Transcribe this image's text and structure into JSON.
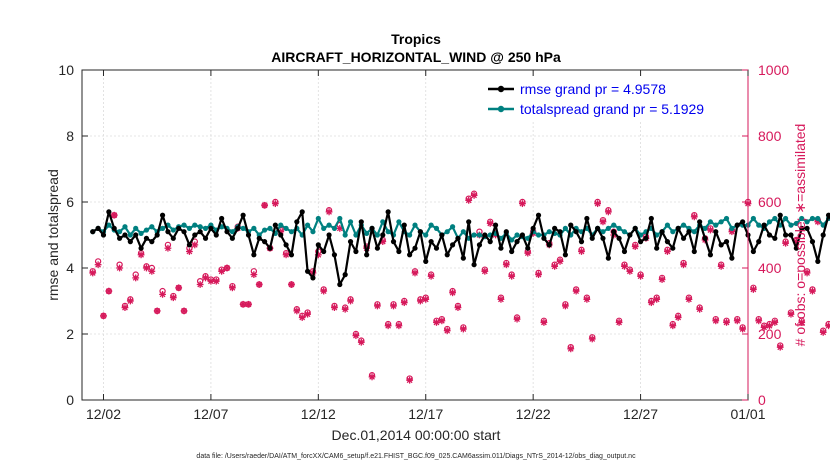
{
  "chart_data": {
    "type": "line",
    "title": "Tropics",
    "subtitle": "AIRCRAFT_HORIZONTAL_WIND @ 250 hPa",
    "xlabel": "Dec.01,2014 00:00:00 start",
    "ylabel_left": "rmse and totalspread",
    "ylabel_right": "# of obs: o=possible; ∗=assimilated",
    "footnote": "data file: /Users/raeder/DAI/ATM_forcXX/CAM6_setup/f.e21.FHIST_BGC.f09_025.CAM6assim.011/Diags_NTrS_2014-12/obs_diag_output.nc",
    "xlim": [
      0.5,
      31.5
    ],
    "ylim_left": [
      0,
      10
    ],
    "ylim_right": [
      0,
      1000
    ],
    "x_ticks": [
      1.5,
      6.5,
      11.5,
      16.5,
      21.5,
      26.5,
      31.5
    ],
    "x_tick_labels": [
      "12/02",
      "12/07",
      "12/12",
      "12/17",
      "12/22",
      "12/27",
      "01/01"
    ],
    "y_left_ticks": [
      "0",
      "2",
      "4",
      "6",
      "8",
      "10"
    ],
    "y_right_ticks": [
      "0",
      "200",
      "400",
      "600",
      "800",
      "1000"
    ],
    "x_step": 0.25,
    "colors": {
      "rmse": "#000000",
      "spread": "#008080",
      "obs": "#d6195b",
      "left_axis": "#262626",
      "right_axis": "#d6195b",
      "legend_text": "#0000ee"
    },
    "series": [
      {
        "name": "rmse grand pr = 4.9578",
        "values": [
          5.1,
          5.2,
          5.0,
          5.7,
          5.2,
          4.9,
          5.0,
          4.8,
          5.0,
          4.6,
          4.9,
          4.8,
          5.0,
          5.6,
          5.1,
          4.9,
          5.2,
          5.1,
          4.7,
          5.0,
          5.1,
          4.9,
          5.2,
          5.0,
          5.5,
          5.1,
          4.9,
          5.2,
          5.6,
          5.0,
          4.4,
          4.9,
          4.8,
          4.6,
          5.3,
          5.0,
          4.7,
          4.4,
          5.4,
          5.7,
          3.9,
          3.7,
          4.7,
          4.5,
          5.0,
          4.4,
          3.5,
          3.8,
          4.8,
          4.5,
          5.4,
          4.4,
          5.2,
          4.6,
          5.0,
          5.7,
          4.8,
          4.5,
          5.3,
          4.4,
          4.6,
          5.1,
          4.2,
          4.8,
          4.6,
          5.0,
          4.4,
          4.7,
          4.9,
          4.3,
          5.4,
          4.1,
          4.7,
          5.0,
          4.8,
          5.3,
          4.6,
          5.1,
          4.5,
          4.8,
          5.0,
          4.6,
          5.2,
          5.6,
          4.9,
          4.7,
          5.2,
          5.1,
          4.4,
          5.3,
          5.1,
          4.8,
          5.5,
          4.9,
          5.2,
          4.9,
          4.3,
          5.1,
          4.9,
          4.5,
          5.0,
          5.2,
          4.8,
          4.9,
          5.5,
          4.6,
          5.1,
          4.8,
          4.6,
          5.2,
          4.9,
          5.1,
          4.5,
          5.4,
          4.9,
          4.4,
          5.1,
          4.7,
          4.8,
          4.3,
          5.3,
          5.4,
          5.0,
          4.5,
          4.8,
          5.3,
          5.0,
          4.9,
          5.6,
          5.0,
          5.0,
          4.6,
          5.2,
          5.2,
          4.8,
          4.2,
          5.0,
          5.6,
          5.3,
          5.0,
          5.2,
          6.0,
          5.0,
          4.1,
          5.6,
          5.2,
          6.3,
          5.2,
          5.0,
          4.6,
          5.4,
          5.0,
          4.5,
          5.1,
          4.9,
          4.6,
          4.9,
          5.2,
          4.7,
          5.5,
          4.8,
          4.6,
          5.1
        ]
      },
      {
        "name": "totalspread grand pr = 5.1929",
        "values": [
          5.1,
          5.2,
          5.1,
          5.3,
          5.15,
          5.1,
          5.25,
          5.0,
          5.2,
          5.05,
          5.15,
          5.25,
          5.1,
          5.2,
          5.3,
          5.15,
          5.25,
          5.3,
          5.2,
          5.3,
          5.25,
          5.2,
          5.3,
          5.15,
          5.25,
          5.2,
          5.1,
          5.25,
          5.2,
          5.1,
          5.2,
          5.0,
          5.15,
          5.2,
          5.05,
          5.3,
          5.2,
          5.1,
          5.2,
          5.0,
          5.3,
          5.1,
          5.5,
          5.2,
          5.3,
          5.2,
          5.5,
          5.0,
          5.4,
          5.0,
          5.3,
          5.05,
          5.2,
          5.0,
          5.4,
          5.1,
          5.0,
          5.4,
          5.1,
          5.0,
          5.3,
          5.1,
          5.0,
          5.3,
          5.2,
          5.0,
          5.1,
          5.25,
          4.9,
          5.1,
          4.9,
          5.0,
          5.0,
          4.95,
          5.0,
          5.05,
          4.9,
          5.05,
          4.85,
          5.0,
          4.95,
          4.9,
          5.1,
          5.0,
          5.0,
          5.1,
          5.05,
          5.0,
          5.2,
          5.0,
          5.2,
          5.1,
          5.2,
          5.0,
          5.2,
          5.1,
          5.2,
          5.3,
          5.2,
          5.1,
          5.0,
          5.2,
          5.0,
          5.1,
          5.2,
          5.0,
          5.1,
          5.3,
          5.1,
          5.2,
          5.3,
          5.2,
          5.1,
          5.3,
          5.2,
          5.4,
          5.3,
          5.4,
          5.5,
          5.2,
          5.3,
          5.3,
          5.3,
          5.5,
          5.3,
          5.2,
          5.4,
          5.5,
          5.3,
          5.5,
          5.3,
          5.35,
          5.5,
          5.4,
          5.5,
          5.5,
          5.3,
          5.5,
          5.4,
          5.5,
          5.6,
          5.5,
          5.5,
          5.4,
          5.6,
          5.5,
          5.6,
          5.4,
          5.5,
          5.6,
          5.4,
          5.5,
          5.5,
          5.5,
          5.6,
          5.4,
          5.5,
          5.4,
          5.5,
          5.4,
          5.5,
          5.2,
          5.3,
          5.2,
          5.1
        ]
      }
    ],
    "obs_possible": [
      390,
      420,
      255,
      330,
      560,
      410,
      285,
      305,
      380,
      445,
      405,
      400,
      270,
      330,
      470,
      315,
      340,
      270,
      460,
      480,
      360,
      375,
      365,
      365,
      395,
      400,
      345,
      525,
      290,
      290,
      390,
      350,
      590,
      460,
      600,
      515,
      445,
      350,
      275,
      255,
      265,
      390,
      450,
      335,
      575,
      285,
      530,
      280,
      305,
      200,
      180,
      465,
      75,
      290,
      485,
      230,
      290,
      230,
      300,
      65,
      390,
      305,
      310,
      380,
      240,
      245,
      215,
      330,
      285,
      220,
      610,
      625,
      510,
      395,
      540,
      505,
      310,
      415,
      380,
      250,
      600,
      450,
      510,
      385,
      240,
      475,
      410,
      425,
      290,
      160,
      335,
      455,
      310,
      190,
      600,
      545,
      575,
      510,
      240,
      410,
      395,
      470,
      380,
      495,
      300,
      310,
      370,
      455,
      230,
      255,
      415,
      310,
      560,
      280,
      490,
      520,
      245,
      410,
      240,
      515,
      245,
      220,
      600,
      340,
      245,
      225,
      230,
      240,
      165,
      480,
      265,
      485,
      240,
      390,
      335,
      545,
      210,
      230,
      245,
      555,
      255,
      265,
      325,
      220,
      250,
      425,
      260,
      230,
      300,
      240,
      280,
      325,
      315,
      285,
      310,
      200,
      190,
      285,
      285,
      375,
      335,
      350,
      220,
      175,
      240,
      180,
      280,
      0
    ],
    "obs_assimilated": [
      385,
      410,
      255,
      330,
      560,
      400,
      280,
      300,
      370,
      440,
      400,
      390,
      270,
      320,
      460,
      310,
      340,
      270,
      450,
      470,
      350,
      370,
      360,
      360,
      390,
      400,
      340,
      520,
      290,
      290,
      380,
      350,
      590,
      460,
      595,
      510,
      440,
      350,
      270,
      250,
      260,
      385,
      440,
      330,
      570,
      280,
      520,
      275,
      300,
      195,
      175,
      460,
      70,
      285,
      480,
      225,
      285,
      225,
      295,
      60,
      385,
      300,
      305,
      375,
      235,
      240,
      210,
      325,
      280,
      215,
      605,
      620,
      500,
      390,
      535,
      500,
      305,
      410,
      375,
      245,
      595,
      445,
      505,
      380,
      235,
      470,
      405,
      420,
      285,
      155,
      330,
      450,
      305,
      185,
      595,
      540,
      570,
      500,
      235,
      405,
      390,
      465,
      375,
      490,
      295,
      305,
      365,
      450,
      225,
      250,
      410,
      305,
      555,
      275,
      485,
      515,
      240,
      405,
      235,
      510,
      240,
      215,
      595,
      335,
      240,
      220,
      225,
      235,
      160,
      475,
      260,
      480,
      235,
      385,
      330,
      540,
      205,
      225,
      240,
      550,
      250,
      260,
      320,
      215,
      245,
      420,
      255,
      225,
      295,
      235,
      275,
      320,
      310,
      280,
      305,
      195,
      185,
      280,
      280,
      370,
      330,
      345,
      215,
      170,
      235,
      175,
      275,
      0
    ]
  }
}
